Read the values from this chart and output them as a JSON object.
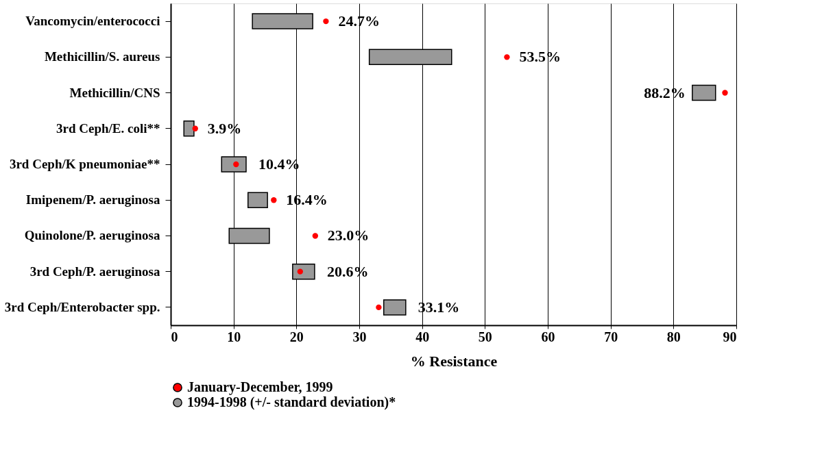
{
  "chart_data": {
    "type": "bar",
    "orientation": "horizontal",
    "categories": [
      "Vancomycin/enterococci",
      "Methicillin/S. aureus",
      "Methicillin/CNS",
      "3rd Ceph/E. coli**",
      "3rd Ceph/K pneumoniae**",
      "Imipenem/P. aeruginosa",
      "Quinolone/P. aeruginosa",
      "3rd Ceph/P. aeruginosa",
      "3rd Ceph/Enterobacter spp."
    ],
    "xlim": [
      0,
      90
    ],
    "xticks": [
      0,
      10,
      20,
      30,
      40,
      50,
      60,
      70,
      80,
      90
    ],
    "xlabel": "% Resistance",
    "grid": "x",
    "legend": "bottom",
    "series": [
      {
        "name": "January-December, 1999",
        "type": "scatter",
        "marker": "circle",
        "color": "#ff0000",
        "values": [
          24.7,
          53.5,
          88.2,
          3.9,
          10.4,
          16.4,
          23.0,
          20.6,
          33.1
        ],
        "value_labels": [
          "24.7%",
          "53.5%",
          "88.2%",
          "3.9%",
          "10.4%",
          "16.4%",
          "23.0%",
          "20.6%",
          "33.1%"
        ]
      },
      {
        "name": "1994-1998 (+/- standard deviation)*",
        "color": "#999999",
        "base": [
          13.0,
          31.6,
          83.0,
          2.1,
          8.1,
          12.3,
          9.3,
          19.4,
          33.9
        ],
        "values": [
          9.6,
          13.1,
          3.7,
          1.6,
          3.9,
          3.1,
          6.4,
          3.5,
          3.5
        ]
      }
    ]
  }
}
